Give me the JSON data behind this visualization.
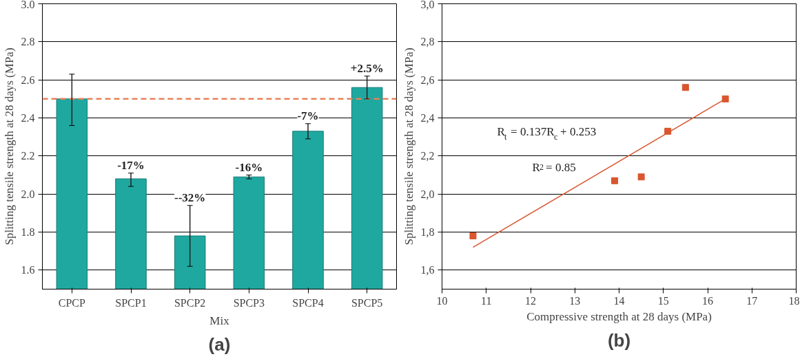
{
  "chart_data": [
    {
      "type": "bar",
      "title": "(a)",
      "ylabel": "Splitting tensile strength at 28 days (MPa)",
      "xlabel": "Mix",
      "categories": [
        "CPCP",
        "SPCP1",
        "SPCP2",
        "SPCP3",
        "SPCP4",
        "SPCP5"
      ],
      "values": [
        2.5,
        2.08,
        1.78,
        2.09,
        2.33,
        2.56
      ],
      "color": "#1fa8a0",
      "errors": [
        [
          2.36,
          2.63
        ],
        [
          2.04,
          2.11
        ],
        [
          1.62,
          1.94
        ],
        [
          2.08,
          2.1
        ],
        [
          2.29,
          2.37
        ],
        [
          2.5,
          2.62
        ]
      ],
      "ylim": [
        1.5,
        3.0
      ],
      "yticks": [
        1.6,
        1.8,
        {
          "value": 2.0,
          "label": "2.0"
        },
        2.2,
        2.4,
        2.6,
        2.8,
        {
          "value": 3.0,
          "label": "3.0"
        }
      ],
      "grid": "y",
      "ref_lines": [
        {
          "axis": "y",
          "value": 2.5,
          "color": "#e8825a",
          "line_style": "dashed"
        }
      ],
      "annotations": [
        "-17%",
        "--32%",
        "-16%",
        "-7%",
        "+2.5%"
      ]
    },
    {
      "type": "scatter",
      "title": "(b)",
      "ylabel": "Splitting tensile strength at 28 days (MPa)",
      "xlabel": "Compressive strength at 28 days (MPa)",
      "grid": "y",
      "series": [
        {
          "type": "scatter",
          "marker": "square",
          "color": "#d9562e",
          "x": [
            10.7,
            13.9,
            14.5,
            15.1,
            15.5,
            16.4
          ],
          "values": [
            1.78,
            2.07,
            2.09,
            2.33,
            2.56,
            2.5
          ]
        },
        {
          "type": "line",
          "color": "#d9562e",
          "x": [
            10.7,
            16.4
          ],
          "values": [
            1.72,
            2.5
          ]
        }
      ],
      "xlim": [
        10,
        18
      ],
      "xticks": [
        10,
        11,
        12,
        13,
        14,
        15,
        16,
        17,
        18
      ],
      "ylim": [
        1.5,
        3.0
      ],
      "yticks": [
        {
          "value": 1.6,
          "label": "1,6"
        },
        {
          "value": 1.8,
          "label": "1,8"
        },
        {
          "value": 2.0,
          "label": "2,0"
        },
        {
          "value": 2.2,
          "label": "2,2"
        },
        {
          "value": 2.4,
          "label": "2,4"
        },
        {
          "value": 2.6,
          "label": "2,6"
        },
        {
          "value": 2.8,
          "label": "2,8"
        },
        {
          "value": 3.0,
          "label": "3,0"
        }
      ],
      "annotations": [
        "R$_{t}$= 0.137R$_{c}$+ 0.253",
        "R$^{2}$= 0.85"
      ]
    }
  ]
}
